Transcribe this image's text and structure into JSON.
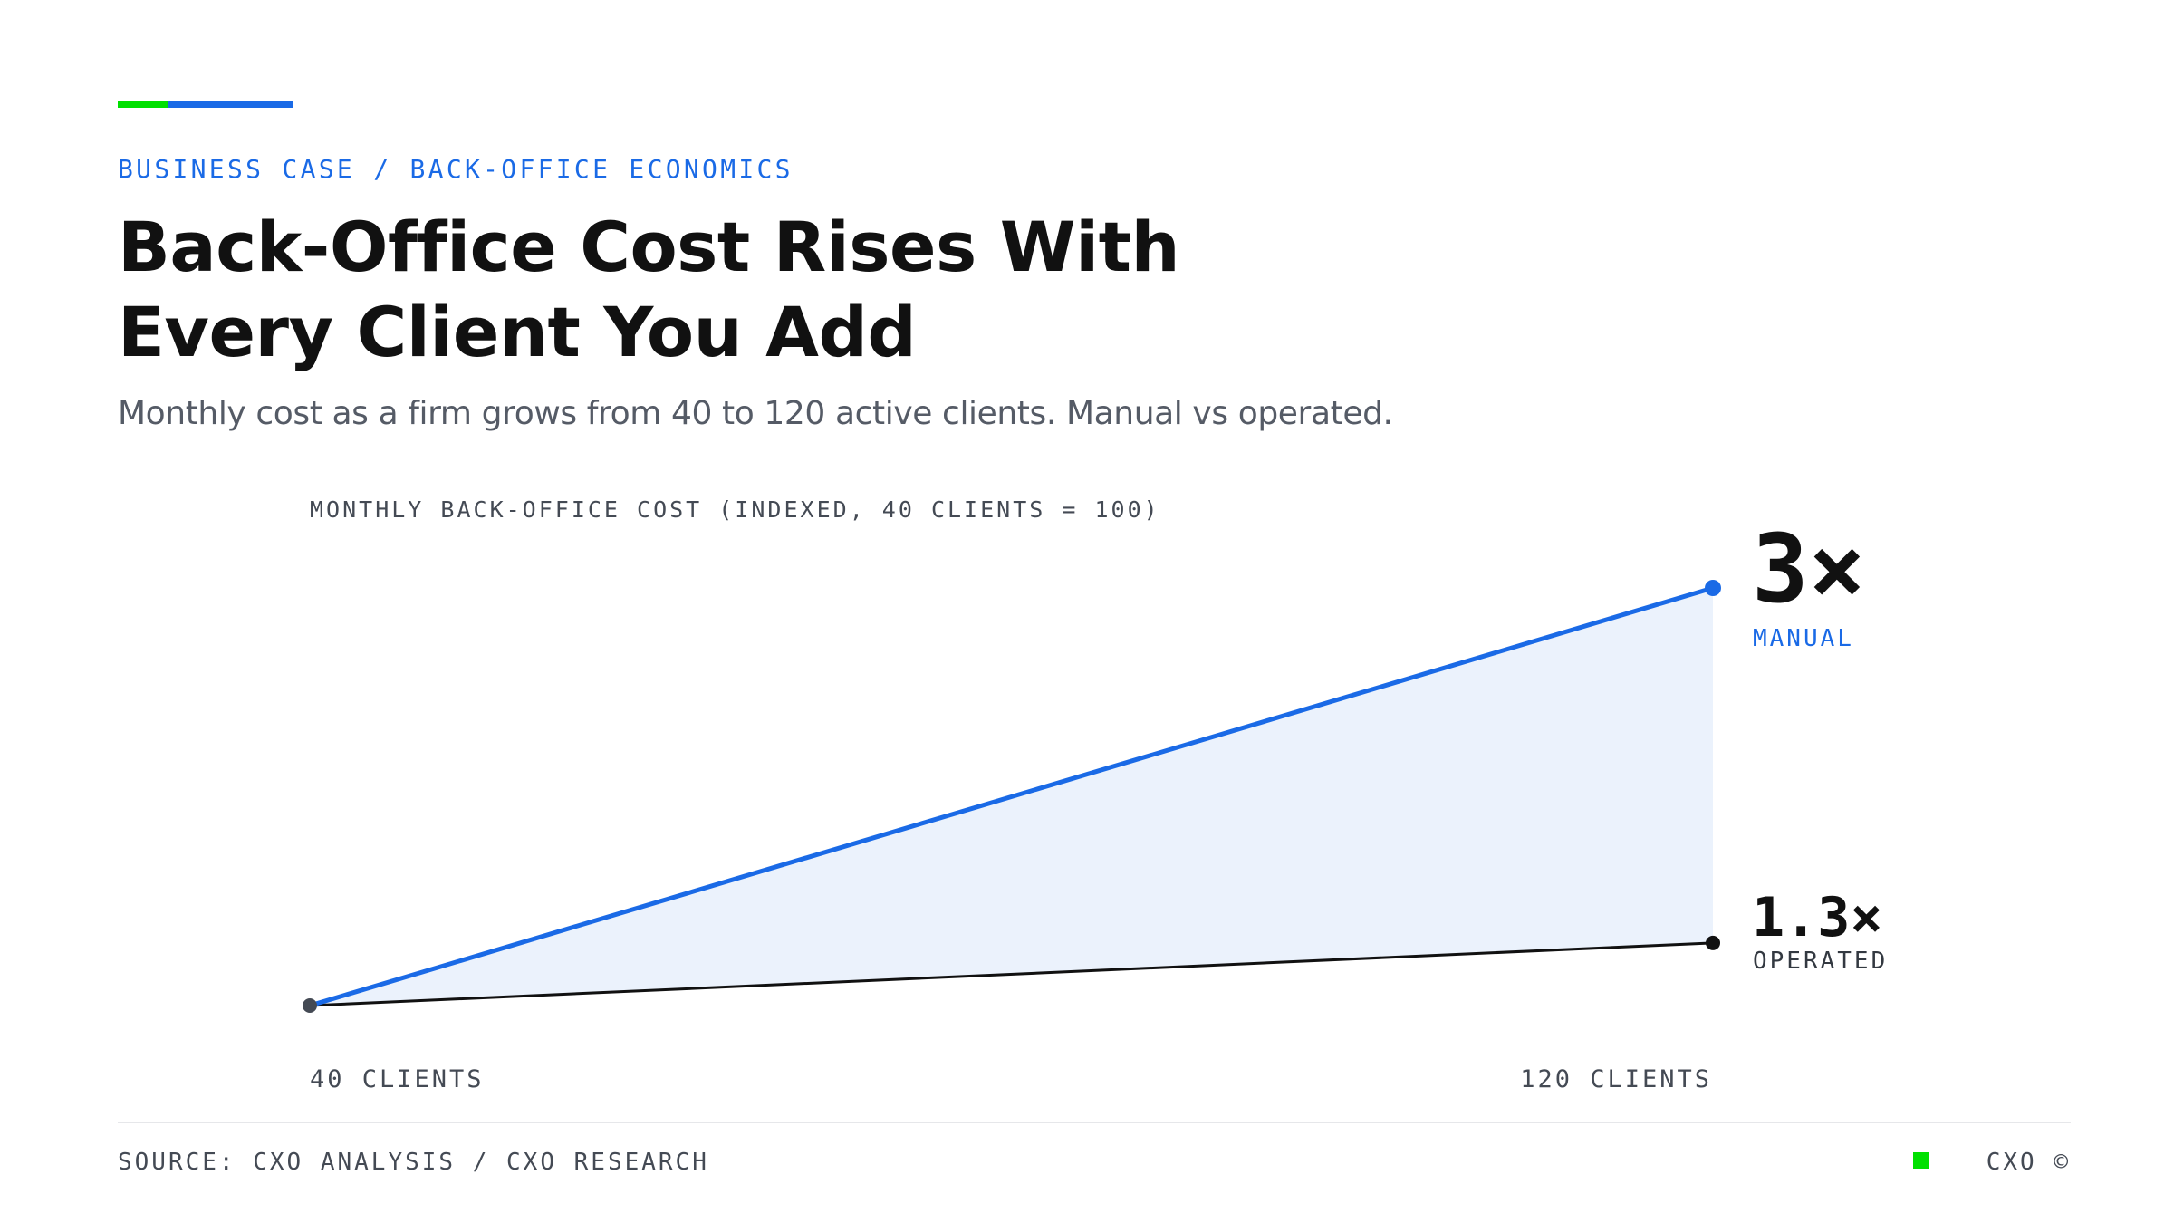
{
  "theme": {
    "accent_green": "#00e000",
    "accent_blue": "#1a6ae6",
    "fill_blue": "#ebf2fc",
    "operated_line": "#111111",
    "start_dot": "#444a54"
  },
  "header": {
    "eyebrow": "BUSINESS CASE / BACK-OFFICE ECONOMICS",
    "title": "Back-Office Cost Rises With Every Client You Add",
    "subtitle": "Monthly cost as a firm grows from 40 to 120 active clients. Manual vs operated."
  },
  "chart_data": {
    "type": "line",
    "title": "",
    "ylabel": "MONTHLY BACK-OFFICE COST (INDEXED, 40 CLIENTS = 100)",
    "xlabel": "",
    "x": [
      40,
      120
    ],
    "x_tick_labels": [
      "40 CLIENTS",
      "120 CLIENTS"
    ],
    "ylim": [
      100,
      300
    ],
    "grid": false,
    "series": [
      {
        "name": "MANUAL",
        "values": [
          100,
          300
        ],
        "end_label": "3×",
        "color": "#1a6ae6"
      },
      {
        "name": "OPERATED",
        "values": [
          100,
          130
        ],
        "end_label": "1.3×",
        "color": "#111111"
      }
    ]
  },
  "footer": {
    "source": "SOURCE: CXO ANALYSIS / CXO RESEARCH",
    "brand": "CXO ©",
    "brand_square_color": "#00e000"
  }
}
